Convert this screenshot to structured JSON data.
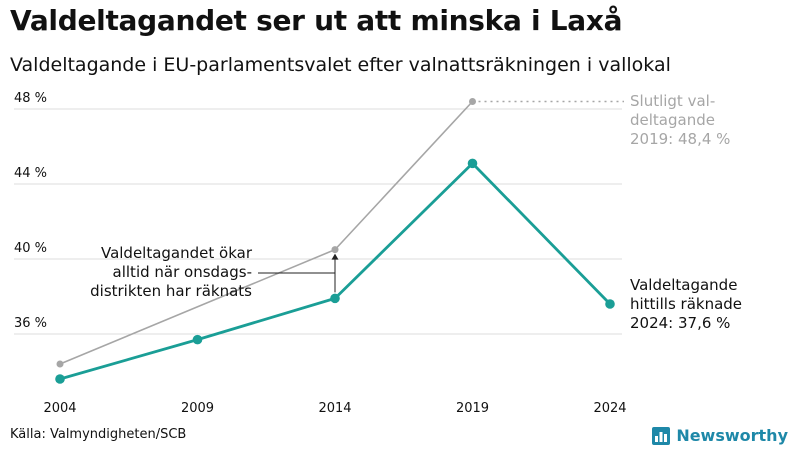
{
  "title": "Valdeltagandet ser ut att minska i Laxå",
  "subtitle": "Valdeltagande i EU-parlamentsvalet efter valnattsräkningen i vallokal",
  "source": "Källa: Valmyndigheten/SCB",
  "brand": {
    "name": "Newsworthy",
    "icon": "bar-chart-logo-icon"
  },
  "colors": {
    "teal": "#1a9e96",
    "gray": "#a6a6a6",
    "grid": "#dddddd",
    "text": "#111111"
  },
  "chart_data": {
    "type": "line",
    "x": [
      2004,
      2009,
      2014,
      2019,
      2024
    ],
    "ylim": [
      32,
      50
    ],
    "yticks": [
      36,
      40,
      44,
      48
    ],
    "ytick_labels": [
      "36 %",
      "40 %",
      "44 %",
      "48 %"
    ],
    "xtick_labels": [
      "2004",
      "2009",
      "2014",
      "2019",
      "2024"
    ],
    "grid": true,
    "series": [
      {
        "key": "final",
        "color": "#a6a6a6",
        "x": [
          2004,
          2014,
          2019
        ],
        "values": [
          34.4,
          40.5,
          48.4
        ]
      },
      {
        "key": "election_night",
        "color": "#1a9e96",
        "x": [
          2004,
          2009,
          2014,
          2019,
          2024
        ],
        "values": [
          33.6,
          35.7,
          37.9,
          45.1,
          37.6
        ]
      }
    ],
    "annotations": {
      "final_label": [
        "Slutligt val-",
        "deltagande",
        "2019: 48,4 %"
      ],
      "current_label": [
        "Valdeltagande",
        "hittills räknade",
        "2024: 37,6 %"
      ],
      "note_label": [
        "Valdeltagandet ökar",
        "alltid när onsdags-",
        "distrikten har räknats"
      ]
    }
  }
}
